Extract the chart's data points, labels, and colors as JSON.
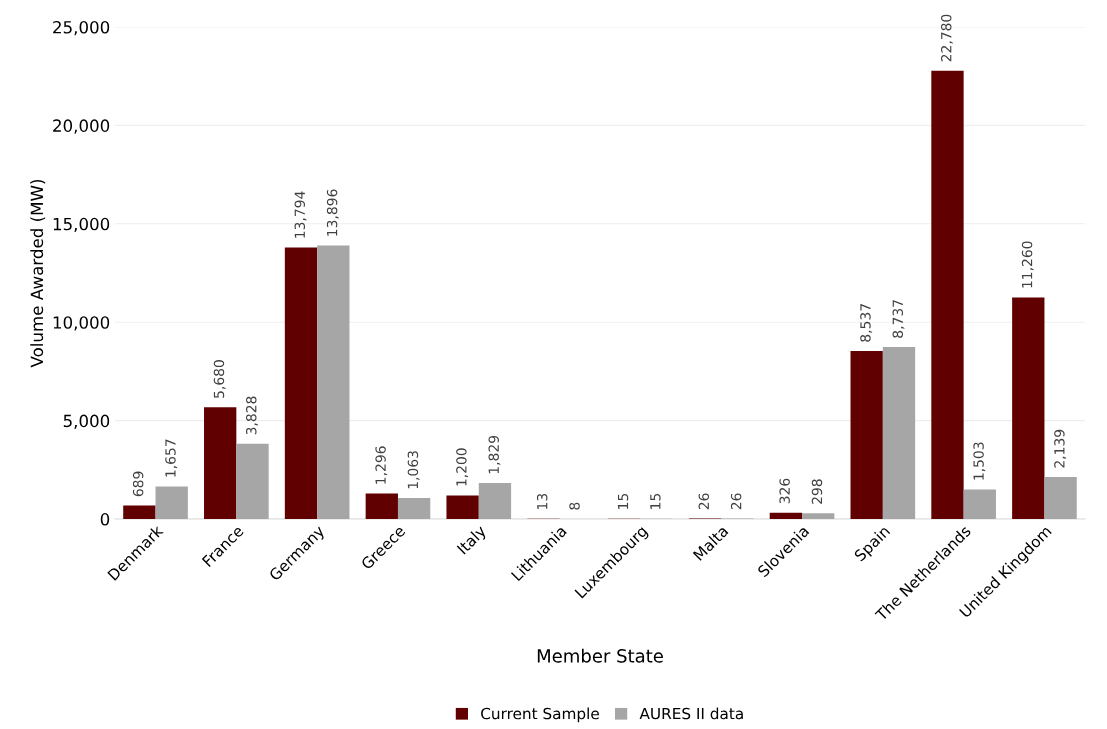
{
  "chart_data": {
    "type": "bar",
    "xlabel": "Member State",
    "ylabel": "Volume Awarded (MW)",
    "categories": [
      "Denmark",
      "France",
      "Germany",
      "Greece",
      "Italy",
      "Lithuania",
      "Luxembourg",
      "Malta",
      "Slovenia",
      "Spain",
      "The Netherlands",
      "United Kingdom"
    ],
    "series": [
      {
        "name": "Current Sample",
        "color": "#600000",
        "values": [
          689,
          5680,
          13794,
          1296,
          1200,
          13,
          15,
          26,
          326,
          8537,
          22780,
          11260
        ],
        "value_labels": [
          "689",
          "5,680",
          "13,794",
          "1,296",
          "1,200",
          "13",
          "15",
          "26",
          "326",
          "8,537",
          "22,780",
          "11,260"
        ]
      },
      {
        "name": "AURES II data",
        "color": "#a6a6a6",
        "values": [
          1657,
          3828,
          13896,
          1063,
          1829,
          8,
          15,
          26,
          298,
          8737,
          1503,
          2139
        ],
        "value_labels": [
          "1,657",
          "3,828",
          "13,896",
          "1,063",
          "1,829",
          "8",
          "15",
          "26",
          "298",
          "8,737",
          "1,503",
          "2,139"
        ]
      }
    ],
    "ylim": [
      0,
      25000
    ],
    "yticks": [
      0,
      {
        "value": 5000,
        "label": "5,000"
      },
      {
        "value": 10000,
        "label": "10,000"
      },
      {
        "value": 15000,
        "label": "15,000"
      },
      {
        "value": 20000,
        "label": "20,000"
      },
      {
        "value": 25000,
        "label": "25,000"
      }
    ],
    "grid": "y",
    "legend": "bottom"
  }
}
